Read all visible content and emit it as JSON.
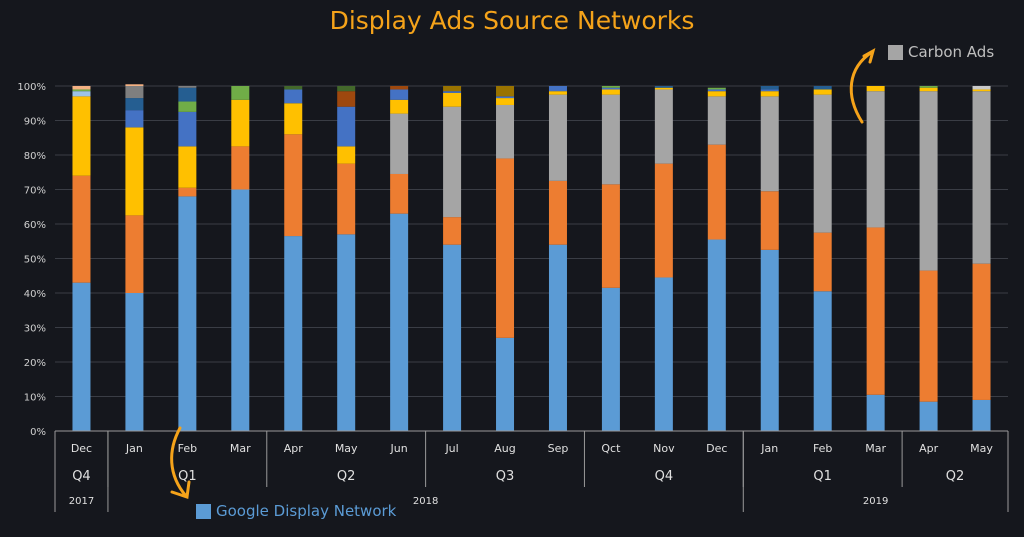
{
  "chart_data": {
    "type": "bar",
    "stacked": true,
    "title": "Display Ads Source Networks",
    "ylim": [
      0,
      100
    ],
    "y_ticks": [
      "0%",
      "10%",
      "20%",
      "30%",
      "40%",
      "50%",
      "60%",
      "70%",
      "80%",
      "90%",
      "100%"
    ],
    "grid": true,
    "categories": [
      "Dec",
      "Jan",
      "Feb",
      "Mar",
      "Apr",
      "May",
      "Jun",
      "Jul",
      "Aug",
      "Sep",
      "Qct",
      "Nov",
      "Dec",
      "Jan",
      "Feb",
      "Mar",
      "Apr",
      "May"
    ],
    "quarters": [
      {
        "label": "Q4",
        "span": 1
      },
      {
        "label": "Q1",
        "span": 3
      },
      {
        "label": "Q2",
        "span": 3
      },
      {
        "label": "Q3",
        "span": 3
      },
      {
        "label": "Q4",
        "span": 3
      },
      {
        "label": "Q1",
        "span": 3
      },
      {
        "label": "Q2",
        "span": 2
      }
    ],
    "years": [
      {
        "label": "2017",
        "span": 1
      },
      {
        "label": "2018",
        "span": 12
      },
      {
        "label": "2019",
        "span": 5
      }
    ],
    "series": [
      {
        "name": "Google Display Network",
        "color": "#5b9bd5",
        "values": [
          43,
          40,
          68,
          70,
          56.5,
          57,
          63,
          54,
          27,
          54,
          41.5,
          44.5,
          55.5,
          52.5,
          40.5,
          10.5,
          8.5,
          9
        ]
      },
      {
        "color": "#ed7d31",
        "values": [
          31,
          22.5,
          2.5,
          12.5,
          29.5,
          20.5,
          11.5,
          8,
          52,
          18.5,
          30,
          33,
          27.5,
          17,
          17,
          48.5,
          38,
          39.5
        ]
      },
      {
        "name": "Carbon Ads",
        "color": "#a5a5a5",
        "values": [
          0,
          0,
          0,
          0,
          0,
          0,
          17.5,
          32,
          15.5,
          25,
          26,
          21.5,
          14,
          27.5,
          40,
          39.5,
          52,
          50
        ]
      },
      {
        "color": "#ffc000",
        "values": [
          23,
          25.5,
          12,
          13.5,
          9,
          5,
          4,
          4,
          2,
          1,
          1.5,
          0.5,
          1.5,
          1.5,
          1.5,
          1.5,
          1,
          0.5
        ]
      },
      {
        "color": "#9dc3e6",
        "values": [
          1.5,
          0,
          0,
          0,
          0,
          0,
          0,
          0,
          0,
          0,
          0,
          0,
          0,
          0,
          0,
          0,
          0,
          0
        ]
      },
      {
        "color": "#4472c4",
        "values": [
          0,
          5,
          10,
          0,
          4,
          11.5,
          3,
          0.5,
          0.5,
          1.5,
          0.5,
          0,
          0.5,
          0.5,
          0,
          0,
          0,
          0
        ]
      },
      {
        "color": "#70ad47",
        "values": [
          0.5,
          0,
          3,
          4,
          0,
          0,
          0,
          0,
          0,
          0,
          0.5,
          0,
          0.5,
          0,
          0,
          0,
          0.5,
          0
        ]
      },
      {
        "color": "#255e91",
        "values": [
          0,
          3.5,
          4,
          0,
          0,
          0,
          0,
          0,
          0,
          0,
          0,
          0.5,
          0,
          1,
          1,
          0,
          0,
          0
        ]
      },
      {
        "color": "#7f7f7f",
        "values": [
          0,
          3.5,
          0.5,
          0,
          0,
          0,
          0,
          0,
          0,
          0,
          0,
          0,
          0,
          0,
          0,
          0,
          0,
          0
        ]
      },
      {
        "color": "#9e480e",
        "values": [
          0,
          0,
          0,
          0,
          0,
          4.5,
          1,
          0,
          0,
          0,
          0,
          0,
          0,
          0,
          0,
          0,
          0,
          0
        ]
      },
      {
        "color": "#43682b",
        "values": [
          0,
          0,
          0,
          0,
          1,
          1.5,
          0,
          0,
          0,
          0,
          0,
          0,
          0,
          0,
          0,
          0,
          0,
          0
        ]
      },
      {
        "color": "#997300",
        "values": [
          0,
          0,
          0,
          0,
          0,
          0,
          0,
          1.5,
          3,
          0,
          0,
          0,
          0,
          0,
          0,
          0,
          0,
          0
        ]
      },
      {
        "color": "#c9c9c9",
        "values": [
          0,
          0,
          0,
          0,
          0,
          0,
          0,
          0,
          0,
          0,
          0,
          0,
          0,
          0,
          0,
          0,
          0,
          1
        ]
      },
      {
        "color": "#f4b183",
        "values": [
          1,
          0.5,
          0,
          0,
          0,
          0,
          0,
          0,
          0,
          0,
          0,
          0,
          0,
          0,
          0,
          0,
          0,
          0
        ]
      }
    ],
    "legend": [
      "Google Display Network",
      "Carbon Ads"
    ],
    "accent_color": "#f5a31a"
  }
}
